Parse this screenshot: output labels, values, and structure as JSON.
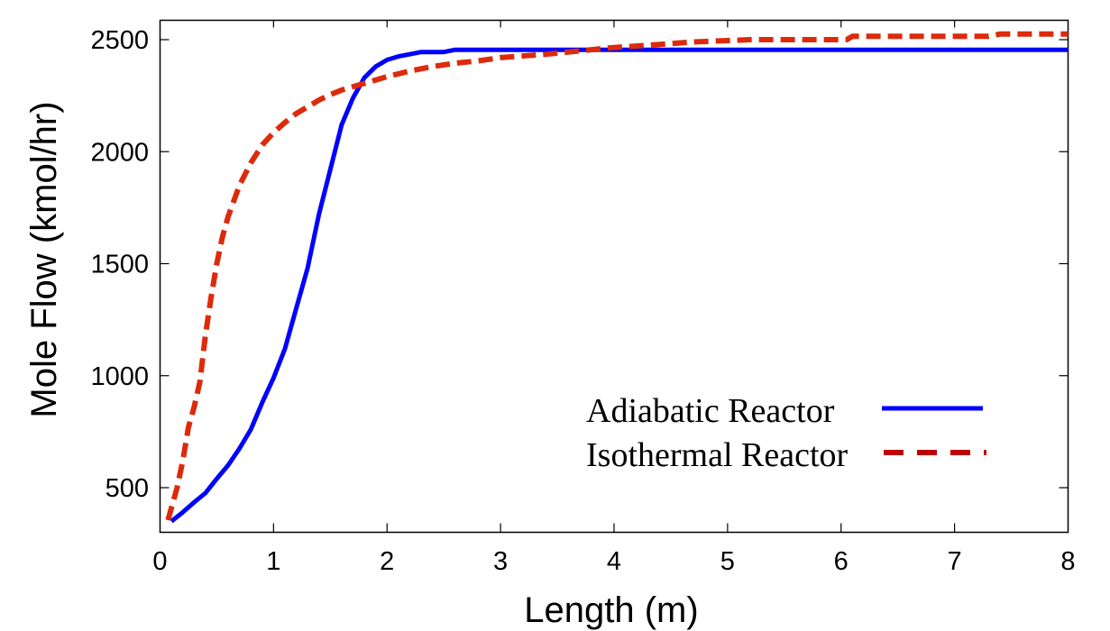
{
  "chart_data": {
    "type": "line",
    "title": "",
    "xlabel": "Length (m)",
    "ylabel": "Mole Flow (kmol/hr)",
    "xlim": [
      0,
      8
    ],
    "ylim": [
      300,
      2585
    ],
    "xticks": [
      0,
      1,
      2,
      3,
      4,
      5,
      6,
      7,
      8
    ],
    "yticks": [
      500,
      1000,
      1500,
      2000,
      2500
    ],
    "grid": false,
    "legend_position": "lower right (inside plot)",
    "series": [
      {
        "name": "Adiabatic Reactor",
        "style": "solid",
        "color": "#0000ff",
        "x": [
          0.1,
          0.2,
          0.3,
          0.4,
          0.5,
          0.6,
          0.7,
          0.8,
          0.9,
          1.0,
          1.1,
          1.2,
          1.3,
          1.4,
          1.5,
          1.6,
          1.7,
          1.8,
          1.9,
          2.0,
          2.1,
          2.2,
          2.3,
          2.4,
          2.5,
          2.6,
          3.0,
          4.0,
          5.0,
          6.0,
          7.0,
          8.0
        ],
        "y": [
          350,
          390,
          435,
          476,
          540,
          600,
          675,
          760,
          880,
          990,
          1120,
          1300,
          1480,
          1720,
          1920,
          2120,
          2240,
          2330,
          2380,
          2410,
          2425,
          2435,
          2445,
          2445,
          2445,
          2455,
          2455,
          2455,
          2455,
          2455,
          2455,
          2455
        ]
      },
      {
        "name": "Isothermal Reactor",
        "style": "dashed",
        "color": "#dd2a0a",
        "x": [
          0.07,
          0.15,
          0.2,
          0.25,
          0.3,
          0.35,
          0.4,
          0.45,
          0.5,
          0.55,
          0.6,
          0.65,
          0.7,
          0.8,
          0.9,
          1.0,
          1.1,
          1.2,
          1.3,
          1.4,
          1.5,
          1.6,
          1.8,
          2.0,
          2.2,
          2.4,
          2.6,
          2.8,
          3.0,
          3.4,
          3.7,
          4.0,
          4.3,
          4.7,
          5.2,
          6.05,
          6.1,
          7.3,
          7.4,
          8.0
        ],
        "y": [
          355,
          500,
          620,
          770,
          860,
          970,
          1180,
          1350,
          1500,
          1620,
          1710,
          1780,
          1850,
          1950,
          2030,
          2085,
          2130,
          2170,
          2200,
          2230,
          2255,
          2275,
          2305,
          2335,
          2360,
          2380,
          2395,
          2405,
          2420,
          2435,
          2450,
          2465,
          2475,
          2490,
          2500,
          2500,
          2515,
          2515,
          2525,
          2525
        ]
      }
    ]
  },
  "axes": {
    "x_title": "Length (m)",
    "y_title": "Mole Flow (kmol/hr)",
    "x_tick_labels": [
      "0",
      "1",
      "2",
      "3",
      "4",
      "5",
      "6",
      "7",
      "8"
    ],
    "y_tick_labels": [
      "500",
      "1000",
      "1500",
      "2000",
      "2500"
    ]
  },
  "legend": {
    "items": [
      {
        "label": "Adiabatic Reactor",
        "color": "#0000ff",
        "style": "solid"
      },
      {
        "label": "Isothermal Reactor",
        "color": "#c00000",
        "style": "dashed"
      }
    ]
  },
  "colors": {
    "adiabatic": "#0000ff",
    "isothermal": "#dd2a0a",
    "legend_isothermal": "#c00000",
    "axis": "#000000",
    "background": "#ffffff"
  }
}
